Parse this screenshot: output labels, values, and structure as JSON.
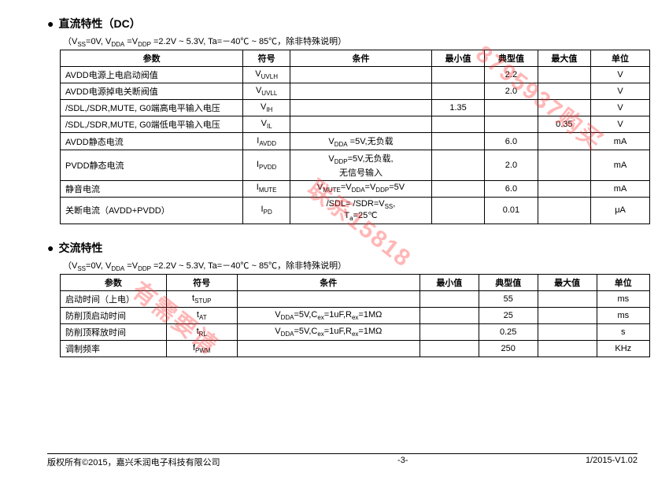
{
  "section1": {
    "title": "直流特性（DC）",
    "note_prefix": "（V",
    "note_mid": "=0V, V",
    "note_mid2": " =V",
    "note_tail": " =2.2V ~ 5.3V, Ta=－40℃ ~ 85℃，除非特殊说明）",
    "headers": [
      "参数",
      "符号",
      "条件",
      "最小值",
      "典型值",
      "最大值",
      "单位"
    ],
    "rows": [
      {
        "p": "AVDD电源上电启动阀值",
        "s": "V",
        "sub": "UVLH",
        "c": "",
        "min": "",
        "typ": "2.2",
        "max": "",
        "u": "V"
      },
      {
        "p": "AVDD电源掉电关断阀值",
        "s": "V",
        "sub": "UVLL",
        "c": "",
        "min": "",
        "typ": "2.0",
        "max": "",
        "u": "V"
      },
      {
        "p": "/SDL,/SDR,MUTE, G0端高电平输入电压",
        "s": "V",
        "sub": "IH",
        "c": "",
        "min": "1.35",
        "typ": "",
        "max": "",
        "u": "V"
      },
      {
        "p": "/SDL,/SDR,MUTE, G0端低电平输入电压",
        "s": "V",
        "sub": "IL",
        "c": "",
        "min": "",
        "typ": "",
        "max": "0.35",
        "u": "V"
      },
      {
        "p": "AVDD静态电流",
        "s": "I",
        "sub": "AVDD",
        "c": "V<sub>DDA</sub> =5V,无负载",
        "min": "",
        "typ": "6.0",
        "max": "",
        "u": "mA"
      },
      {
        "p": "PVDD静态电流",
        "s": "I",
        "sub": "PVDD",
        "c": "V<sub>DDP</sub>=5V,无负载,<br>无信号输入",
        "min": "",
        "typ": "2.0",
        "max": "",
        "u": "mA"
      },
      {
        "p": "静音电流",
        "s": "I",
        "sub": "MUTE",
        "c": "V<sub>MUTE</sub>=V<sub>DDA</sub>=V<sub>DDP</sub>=5V",
        "min": "",
        "typ": "6.0",
        "max": "",
        "u": "mA"
      },
      {
        "p": "关断电流（AVDD+PVDD）",
        "s": "I",
        "sub": "PD",
        "c": "/SDL= /SDR=V<sub>SS</sub>,<br>T<sub>a</sub>=25℃",
        "min": "",
        "typ": "0.01",
        "max": "",
        "u": "μA"
      }
    ]
  },
  "section2": {
    "title": "交流特性",
    "headers": [
      "参数",
      "符号",
      "条件",
      "最小值",
      "典型值",
      "最大值",
      "单位"
    ],
    "rows": [
      {
        "p": "启动时间（上电）",
        "s": "t",
        "sub": "STUP",
        "c": "",
        "min": "",
        "typ": "55",
        "max": "",
        "u": "ms"
      },
      {
        "p": "防削顶启动时间",
        "s": "t",
        "sub": "AT",
        "c": "V<sub>DDA</sub>=5V,C<sub>ex</sub>=1uF,R<sub>ex</sub>=1MΩ",
        "min": "",
        "typ": "25",
        "max": "",
        "u": "ms"
      },
      {
        "p": "防削顶释放时间",
        "s": "t",
        "sub": "RL",
        "c": "V<sub>DDA</sub>=5V,C<sub>ex</sub>=1uF,R<sub>ex</sub>=1MΩ",
        "min": "",
        "typ": "0.25",
        "max": "",
        "u": "s"
      },
      {
        "p": "调制频率",
        "s": "f",
        "sub": "PWM",
        "c": "",
        "min": "",
        "typ": "250",
        "max": "",
        "u": "KHz"
      }
    ]
  },
  "footer": {
    "left": "版权所有©2015，嘉兴禾润电子科技有限公司",
    "center": "-3-",
    "right": "1/2015-V1.02"
  },
  "watermark": {
    "t1": "8795937购买",
    "t2": "联系15818",
    "t3": "有需要请"
  }
}
